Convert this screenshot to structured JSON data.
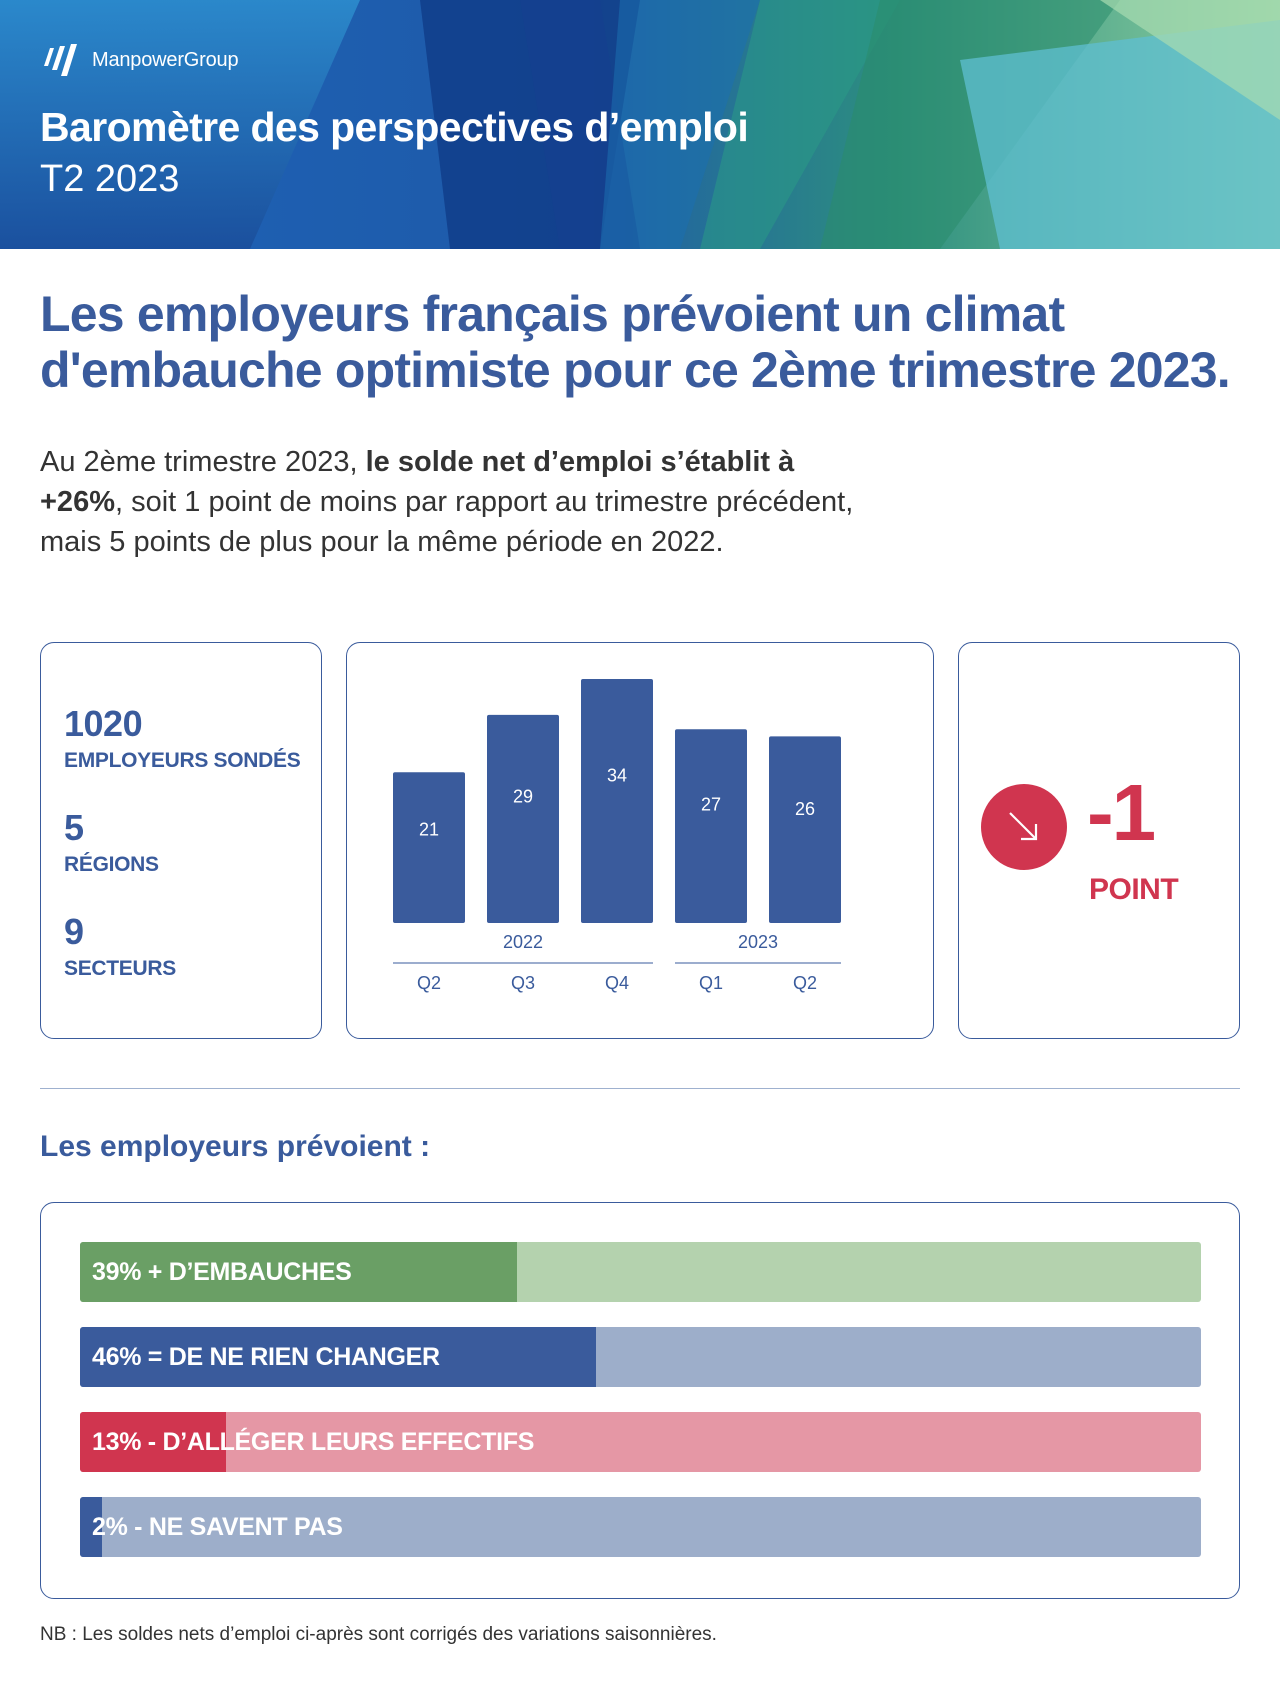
{
  "header": {
    "brand": "ManpowerGroup",
    "title": "Baromètre des perspectives d’emploi",
    "subtitle": "T2 2023"
  },
  "headline": "Les employeurs français prévoient un climat d'embauche optimiste pour ce 2ème trimestre 2023.",
  "intro": {
    "part1": "Au 2ème trimestre 2023, ",
    "bold": "le solde net d’emploi s’établit à +26%",
    "part2": ", soit 1 point de moins par rapport au trimestre précédent, mais 5 points de plus pour la même période en 2022."
  },
  "stats": [
    {
      "value": "1020",
      "label": "EMPLOYEURS SONDÉS"
    },
    {
      "value": "5",
      "label": "RÉGIONS"
    },
    {
      "value": "9",
      "label": "SECTEURS"
    }
  ],
  "change": {
    "value": "-1",
    "unit": "POINT",
    "icon": "arrow-down-right-icon",
    "color": "#d0354f"
  },
  "colors": {
    "brand_blue": "#3a5b9c",
    "accent_red": "#d0354f",
    "green": "#6a9f65",
    "light_green": "#b4d2ae",
    "light_blue": "#9daeca",
    "light_red": "#e597a5"
  },
  "chart_data": [
    {
      "type": "bar",
      "categories": [
        "Q2",
        "Q3",
        "Q4",
        "Q1",
        "Q2"
      ],
      "groups": [
        {
          "label": "2022",
          "categories": [
            "Q2",
            "Q3",
            "Q4"
          ]
        },
        {
          "label": "2023",
          "categories": [
            "Q1",
            "Q2"
          ]
        }
      ],
      "values": [
        21,
        29,
        34,
        27,
        26
      ],
      "title": "",
      "xlabel": "",
      "ylabel": "",
      "ylim": [
        0,
        34
      ],
      "grid": false,
      "color": "#3a5b9c"
    },
    {
      "type": "bar",
      "orientation": "horizontal",
      "title": "Les employeurs prévoient :",
      "categories": [
        "+ D’EMBAUCHES",
        "= DE NE RIEN CHANGER",
        "- D’ALLÉGER LEURS EFFECTIFS",
        "- NE SAVENT PAS"
      ],
      "values": [
        39,
        46,
        13,
        2
      ],
      "labels": [
        "39% + D’EMBAUCHES",
        "46% = DE NE RIEN CHANGER",
        "13% - D’ALLÉGER LEURS EFFECTIFS",
        "2% - NE SAVENT PAS"
      ],
      "xlim": [
        0,
        100
      ],
      "colors": [
        "#6a9f65",
        "#3a5b9c",
        "#d0354f",
        "#3a5b9c"
      ],
      "track_colors": [
        "#b4d2ae",
        "#9daeca",
        "#e597a5",
        "#9daeca"
      ]
    }
  ],
  "section_title": "Les employeurs prévoient :",
  "note": "NB : Les soldes nets d’emploi ci-après sont corrigés des variations saisonnières."
}
